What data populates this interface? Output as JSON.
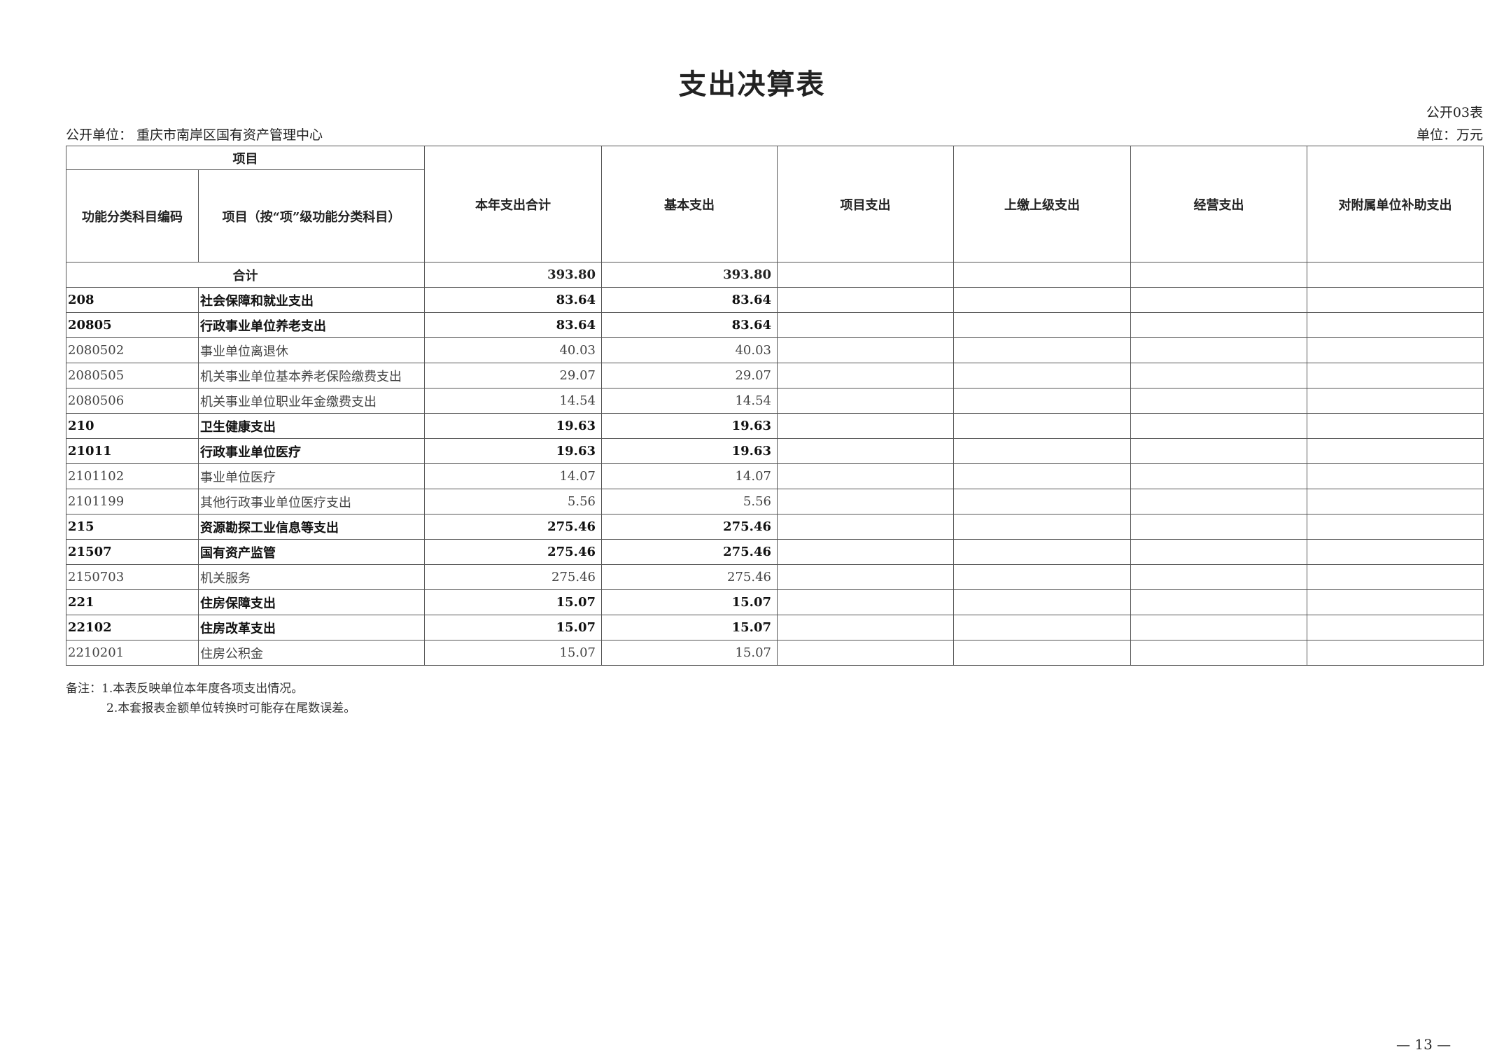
{
  "title": "支出决算表",
  "form_no": "公开03表",
  "unit_label": "公开单位：  重庆市南岸区国有资产管理中心",
  "currency_unit": "单位：万元",
  "headers": {
    "group": "项目",
    "code": "功能分类科目编码",
    "name": "项目（按“项”级功能分类科目）",
    "total": "本年支出合计",
    "basic": "基本支出",
    "project": "项目支出",
    "upper": "上缴上级支出",
    "business": "经营支出",
    "subsidy": "对附属单位补助支出"
  },
  "total_row": {
    "label": "合计",
    "total": "393.80",
    "basic": "393.80"
  },
  "rows": [
    {
      "code": "208",
      "name": "社会保障和就业支出",
      "total": "83.64",
      "basic": "83.64",
      "bold": true
    },
    {
      "code": "20805",
      "name": "行政事业单位养老支出",
      "total": "83.64",
      "basic": "83.64",
      "bold": true
    },
    {
      "code": "2080502",
      "name": "事业单位离退休",
      "total": "40.03",
      "basic": "40.03",
      "bold": false
    },
    {
      "code": "2080505",
      "name": "机关事业单位基本养老保险缴费支出",
      "total": "29.07",
      "basic": "29.07",
      "bold": false
    },
    {
      "code": "2080506",
      "name": "机关事业单位职业年金缴费支出",
      "total": "14.54",
      "basic": "14.54",
      "bold": false
    },
    {
      "code": "210",
      "name": "卫生健康支出",
      "total": "19.63",
      "basic": "19.63",
      "bold": true
    },
    {
      "code": "21011",
      "name": "行政事业单位医疗",
      "total": "19.63",
      "basic": "19.63",
      "bold": true
    },
    {
      "code": "2101102",
      "name": "事业单位医疗",
      "total": "14.07",
      "basic": "14.07",
      "bold": false
    },
    {
      "code": "2101199",
      "name": "其他行政事业单位医疗支出",
      "total": "5.56",
      "basic": "5.56",
      "bold": false
    },
    {
      "code": "215",
      "name": "资源勘探工业信息等支出",
      "total": "275.46",
      "basic": "275.46",
      "bold": true
    },
    {
      "code": "21507",
      "name": "国有资产监管",
      "total": "275.46",
      "basic": "275.46",
      "bold": true
    },
    {
      "code": "2150703",
      "name": "机关服务",
      "total": "275.46",
      "basic": "275.46",
      "bold": false
    },
    {
      "code": "221",
      "name": "住房保障支出",
      "total": "15.07",
      "basic": "15.07",
      "bold": true
    },
    {
      "code": "22102",
      "name": "住房改革支出",
      "total": "15.07",
      "basic": "15.07",
      "bold": true
    },
    {
      "code": "2210201",
      "name": "住房公积金",
      "total": "15.07",
      "basic": "15.07",
      "bold": false
    }
  ],
  "notes": [
    "备注：1.本表反映单位本年度各项支出情况。",
    "2.本套报表金额单位转换时可能存在尾数误差。"
  ],
  "page_number": "— 13 —"
}
